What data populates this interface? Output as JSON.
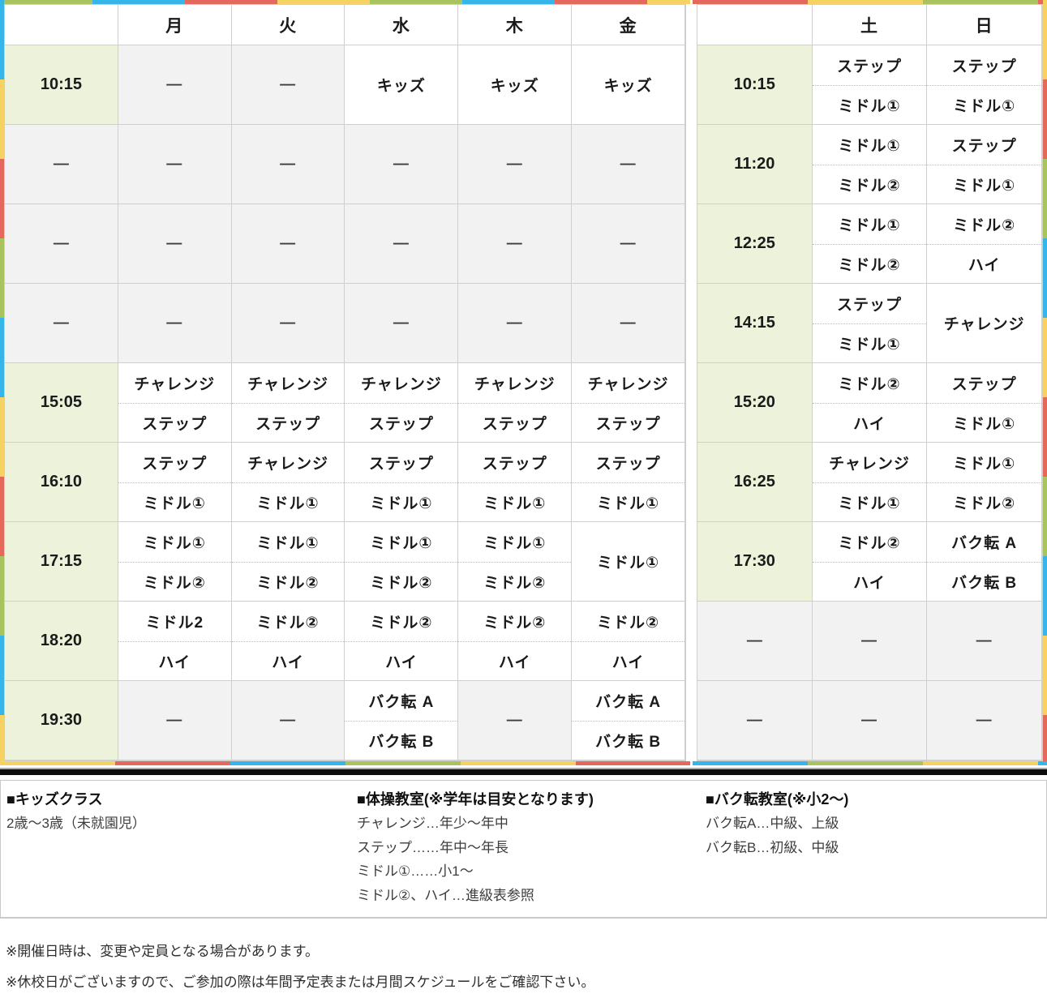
{
  "empty_symbol": "—",
  "colors": {
    "time_cell_bg": "#edf2da",
    "empty_cell_bg": "#f2f2f2",
    "grid_line": "#cfcfcf",
    "crayon_green": "#a9c45e",
    "crayon_cyan": "#35b5e9",
    "crayon_red": "#e4685c",
    "crayon_yellow": "#f6d263",
    "separator_bar": "#0d0d0d"
  },
  "tables": [
    {
      "id": "weekday",
      "columns": [
        "",
        "月",
        "火",
        "水",
        "木",
        "金"
      ],
      "rows": [
        {
          "time": "10:15",
          "time_type": "time",
          "cells": [
            {
              "t": "empty"
            },
            {
              "t": "empty"
            },
            {
              "t": "single",
              "v": "キッズ"
            },
            {
              "t": "single",
              "v": "キッズ"
            },
            {
              "t": "single",
              "v": "キッズ"
            }
          ]
        },
        {
          "time": "—",
          "time_type": "empty",
          "cells": [
            {
              "t": "empty"
            },
            {
              "t": "empty"
            },
            {
              "t": "empty"
            },
            {
              "t": "empty"
            },
            {
              "t": "empty"
            }
          ]
        },
        {
          "time": "—",
          "time_type": "empty",
          "cells": [
            {
              "t": "empty"
            },
            {
              "t": "empty"
            },
            {
              "t": "empty"
            },
            {
              "t": "empty"
            },
            {
              "t": "empty"
            }
          ]
        },
        {
          "time": "—",
          "time_type": "empty",
          "cells": [
            {
              "t": "empty"
            },
            {
              "t": "empty"
            },
            {
              "t": "empty"
            },
            {
              "t": "empty"
            },
            {
              "t": "empty"
            }
          ]
        },
        {
          "time": "15:05",
          "time_type": "time",
          "cells": [
            {
              "t": "double",
              "v": [
                "チャレンジ",
                "ステップ"
              ]
            },
            {
              "t": "double",
              "v": [
                "チャレンジ",
                "ステップ"
              ]
            },
            {
              "t": "double",
              "v": [
                "チャレンジ",
                "ステップ"
              ]
            },
            {
              "t": "double",
              "v": [
                "チャレンジ",
                "ステップ"
              ]
            },
            {
              "t": "double",
              "v": [
                "チャレンジ",
                "ステップ"
              ]
            }
          ]
        },
        {
          "time": "16:10",
          "time_type": "time",
          "cells": [
            {
              "t": "double",
              "v": [
                "ステップ",
                "ミドル①"
              ]
            },
            {
              "t": "double",
              "v": [
                "チャレンジ",
                "ミドル①"
              ]
            },
            {
              "t": "double",
              "v": [
                "ステップ",
                "ミドル①"
              ]
            },
            {
              "t": "double",
              "v": [
                "ステップ",
                "ミドル①"
              ]
            },
            {
              "t": "double",
              "v": [
                "ステップ",
                "ミドル①"
              ]
            }
          ]
        },
        {
          "time": "17:15",
          "time_type": "time",
          "cells": [
            {
              "t": "double",
              "v": [
                "ミドル①",
                "ミドル②"
              ]
            },
            {
              "t": "double",
              "v": [
                "ミドル①",
                "ミドル②"
              ]
            },
            {
              "t": "double",
              "v": [
                "ミドル①",
                "ミドル②"
              ]
            },
            {
              "t": "double",
              "v": [
                "ミドル①",
                "ミドル②"
              ]
            },
            {
              "t": "single",
              "v": "ミドル①"
            }
          ]
        },
        {
          "time": "18:20",
          "time_type": "time",
          "cells": [
            {
              "t": "double",
              "v": [
                "ミドル2",
                "ハイ"
              ]
            },
            {
              "t": "double",
              "v": [
                "ミドル②",
                "ハイ"
              ]
            },
            {
              "t": "double",
              "v": [
                "ミドル②",
                "ハイ"
              ]
            },
            {
              "t": "double",
              "v": [
                "ミドル②",
                "ハイ"
              ]
            },
            {
              "t": "double",
              "v": [
                "ミドル②",
                "ハイ"
              ]
            }
          ]
        },
        {
          "time": "19:30",
          "time_type": "time",
          "cells": [
            {
              "t": "empty"
            },
            {
              "t": "empty"
            },
            {
              "t": "double",
              "v": [
                "バク転 A",
                "バク転 B"
              ]
            },
            {
              "t": "empty"
            },
            {
              "t": "double",
              "v": [
                "バク転 A",
                "バク転 B"
              ]
            }
          ]
        }
      ]
    },
    {
      "id": "weekend",
      "columns": [
        "",
        "土",
        "日"
      ],
      "rows": [
        {
          "time": "10:15",
          "time_type": "time",
          "cells": [
            {
              "t": "double",
              "v": [
                "ステップ",
                "ミドル①"
              ]
            },
            {
              "t": "double",
              "v": [
                "ステップ",
                "ミドル①"
              ]
            }
          ]
        },
        {
          "time": "11:20",
          "time_type": "time",
          "cells": [
            {
              "t": "double",
              "v": [
                "ミドル①",
                "ミドル②"
              ]
            },
            {
              "t": "double",
              "v": [
                "ステップ",
                "ミドル①"
              ]
            }
          ]
        },
        {
          "time": "12:25",
          "time_type": "time",
          "cells": [
            {
              "t": "double",
              "v": [
                "ミドル①",
                "ミドル②"
              ]
            },
            {
              "t": "double",
              "v": [
                "ミドル②",
                "ハイ"
              ]
            }
          ]
        },
        {
          "time": "14:15",
          "time_type": "time",
          "cells": [
            {
              "t": "double",
              "v": [
                "ステップ",
                "ミドル①"
              ]
            },
            {
              "t": "single",
              "v": "チャレンジ"
            }
          ]
        },
        {
          "time": "15:20",
          "time_type": "time",
          "cells": [
            {
              "t": "double",
              "v": [
                "ミドル②",
                "ハイ"
              ]
            },
            {
              "t": "double",
              "v": [
                "ステップ",
                "ミドル①"
              ]
            }
          ]
        },
        {
          "time": "16:25",
          "time_type": "time",
          "cells": [
            {
              "t": "double",
              "v": [
                "チャレンジ",
                "ミドル①"
              ]
            },
            {
              "t": "double",
              "v": [
                "ミドル①",
                "ミドル②"
              ]
            }
          ]
        },
        {
          "time": "17:30",
          "time_type": "time",
          "cells": [
            {
              "t": "double",
              "v": [
                "ミドル②",
                "ハイ"
              ]
            },
            {
              "t": "double",
              "v": [
                "バク転 A",
                "バク転 B"
              ]
            }
          ]
        },
        {
          "time": "—",
          "time_type": "empty",
          "cells": [
            {
              "t": "empty"
            },
            {
              "t": "empty"
            }
          ]
        },
        {
          "time": "—",
          "time_type": "empty",
          "cells": [
            {
              "t": "empty"
            },
            {
              "t": "empty"
            }
          ]
        }
      ]
    }
  ],
  "legend": {
    "kids": {
      "title": "■キッズクラス",
      "lines": [
        "2歳〜3歳（未就園児）"
      ]
    },
    "gym": {
      "title": "■体操教室(※学年は目安となります)",
      "lines": [
        "チャレンジ…年少〜年中",
        "ステップ……年中〜年長",
        "ミドル①……小1〜",
        "ミドル②、ハイ…進級表参照"
      ]
    },
    "bakuten": {
      "title": "■バク転教室(※小2〜)",
      "lines": [
        "バク転A…中級、上級",
        "バク転B…初級、中級"
      ]
    }
  },
  "notes": [
    "※開催日時は、変更や定員となる場合があります。",
    "※休校日がございますので、ご参加の際は年間予定表または月間スケジュールをご確認下さい。"
  ]
}
